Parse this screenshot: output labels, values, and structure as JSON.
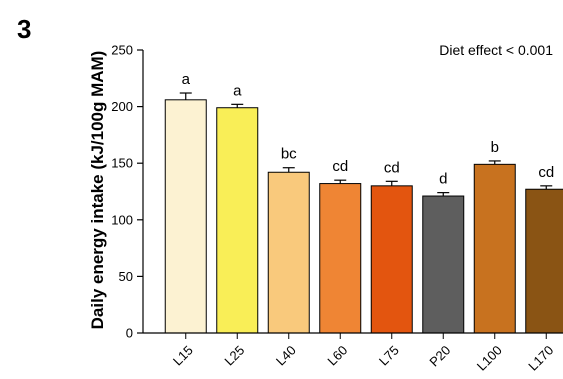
{
  "panel_label": "3",
  "chart_data": {
    "type": "bar",
    "title": "",
    "xlabel": "",
    "ylabel": "Daily energy intake (kJ/100g MAM)",
    "ylim": [
      0,
      250
    ],
    "yticks": [
      0,
      50,
      100,
      150,
      200,
      250
    ],
    "grid": false,
    "annotation": "Diet effect < 0.001",
    "categories": [
      "L15",
      "L25",
      "L40",
      "L60",
      "L75",
      "P20",
      "L100",
      "L170"
    ],
    "values": [
      206,
      199,
      142,
      132,
      130,
      121,
      149,
      127
    ],
    "errors": [
      6,
      3,
      4,
      3,
      4,
      3,
      3,
      3
    ],
    "significance": [
      "a",
      "a",
      "bc",
      "cd",
      "cd",
      "d",
      "b",
      "cd"
    ],
    "colors": [
      "#FCF2D2",
      "#F9EE57",
      "#F9C97C",
      "#EF8534",
      "#E3550F",
      "#5E5E5E",
      "#C8721F",
      "#8A5414"
    ]
  }
}
